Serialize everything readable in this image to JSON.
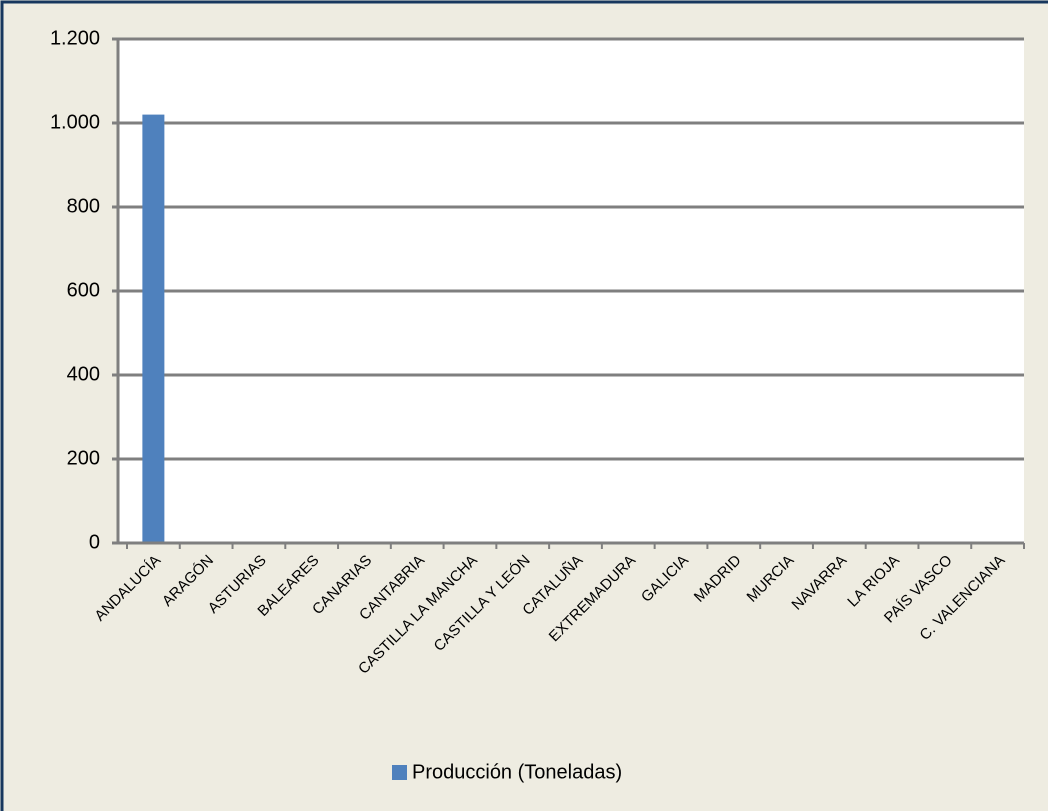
{
  "chart_data": {
    "type": "bar",
    "categories": [
      "ANDALUCÍA",
      "ARAGÓN",
      "ASTURIAS",
      "BALEARES",
      "CANARIAS",
      "CANTABRIA",
      "CASTILLA LA MANCHA",
      "CASTILLA Y LEÓN",
      "CATALUÑA",
      "EXTREMADURA",
      "GALICIA",
      "MADRID",
      "MURCIA",
      "NAVARRA",
      "LA RIOJA",
      "PAÍS VASCO",
      "C. VALENCIANA"
    ],
    "series": [
      {
        "name": "Producción (Toneladas)",
        "color": "#4f81bd",
        "values": [
          1020,
          0,
          0,
          0,
          0,
          0,
          0,
          0,
          0,
          0,
          0,
          0,
          0,
          0,
          0,
          0,
          0
        ]
      }
    ],
    "ylim": [
      0,
      1200
    ],
    "yticks": [
      0,
      200,
      400,
      600,
      800,
      {
        "value": 1000,
        "label": "1.000"
      },
      {
        "value": 1200,
        "label": "1.200"
      }
    ],
    "grid": true,
    "legend": "bottom"
  }
}
